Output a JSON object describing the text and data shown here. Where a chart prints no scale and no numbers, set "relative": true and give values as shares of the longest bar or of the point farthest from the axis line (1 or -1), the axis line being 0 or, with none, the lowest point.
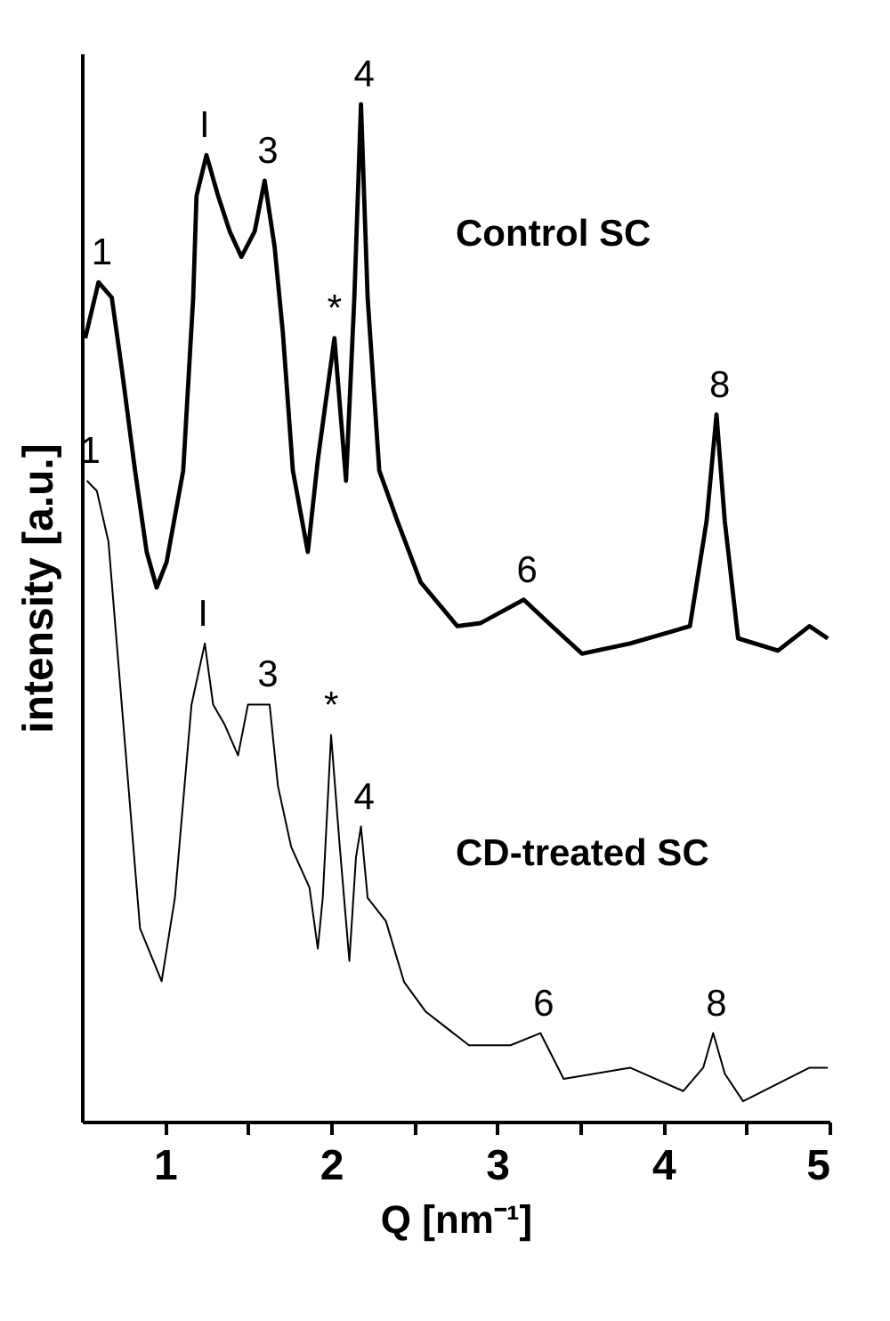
{
  "chart_data": {
    "type": "line",
    "xlabel": "Q [nm⁻¹]",
    "ylabel": "intensity [a.u.]",
    "relative": true,
    "grid": false,
    "legend": false,
    "xlim": [
      0.5,
      5
    ],
    "xticks": [
      {
        "value": 1,
        "label": "1"
      },
      {
        "value": 1.5,
        "label": null
      },
      {
        "value": 2,
        "label": "2"
      },
      {
        "value": 2.5,
        "label": null
      },
      {
        "value": 3,
        "label": "3"
      },
      {
        "value": 3.5,
        "label": null
      },
      {
        "value": 4,
        "label": "4"
      },
      {
        "value": 4.5,
        "label": null
      },
      {
        "value": 5,
        "label": "5"
      }
    ],
    "series": [
      {
        "name": "Control SC",
        "color": "#000000",
        "x": [
          0.52,
          0.6,
          0.68,
          0.74,
          0.82,
          0.89,
          0.95,
          1.01,
          1.11,
          1.17,
          1.19,
          1.25,
          1.32,
          1.39,
          1.46,
          1.54,
          1.6,
          1.66,
          1.71,
          1.77,
          1.86,
          1.92,
          2.02,
          2.09,
          2.14,
          2.18,
          2.22,
          2.29,
          2.4,
          2.54,
          2.76,
          2.9,
          3.16,
          3.33,
          3.51,
          3.8,
          4.16,
          4.26,
          4.32,
          4.37,
          4.45,
          4.69,
          4.88,
          4.99
        ],
        "values": [
          0.77,
          0.825,
          0.81,
          0.74,
          0.64,
          0.56,
          0.525,
          0.55,
          0.64,
          0.81,
          0.91,
          0.95,
          0.91,
          0.875,
          0.85,
          0.875,
          0.925,
          0.86,
          0.775,
          0.64,
          0.56,
          0.65,
          0.77,
          0.63,
          0.81,
          1.0,
          0.81,
          0.64,
          0.59,
          0.53,
          0.487,
          0.49,
          0.513,
          0.487,
          0.46,
          0.47,
          0.487,
          0.59,
          0.695,
          0.59,
          0.475,
          0.463,
          0.487,
          0.475
        ]
      },
      {
        "name": "CD-treated SC",
        "color": "#000000",
        "x": [
          0.53,
          0.59,
          0.66,
          0.73,
          0.76,
          0.85,
          0.98,
          1.06,
          1.16,
          1.24,
          1.29,
          1.36,
          1.44,
          1.5,
          1.63,
          1.68,
          1.76,
          1.87,
          1.92,
          1.95,
          2.0,
          2.05,
          2.11,
          2.15,
          2.18,
          2.22,
          2.33,
          2.44,
          2.57,
          2.83,
          3.08,
          3.26,
          3.4,
          3.8,
          4.12,
          4.24,
          4.3,
          4.37,
          4.48,
          4.88,
          4.99
        ],
        "values": [
          0.63,
          0.62,
          0.57,
          0.43,
          0.37,
          0.19,
          0.138,
          0.22,
          0.41,
          0.47,
          0.41,
          0.39,
          0.36,
          0.41,
          0.41,
          0.33,
          0.27,
          0.23,
          0.17,
          0.22,
          0.38,
          0.275,
          0.158,
          0.26,
          0.29,
          0.22,
          0.197,
          0.137,
          0.108,
          0.075,
          0.075,
          0.087,
          0.042,
          0.053,
          0.03,
          0.053,
          0.087,
          0.047,
          0.02,
          0.053,
          0.053
        ]
      }
    ],
    "annotations": [
      {
        "text": "1",
        "x": 0.6,
        "y": 0.825
      },
      {
        "text": "I",
        "x": 1.25,
        "y": 0.95
      },
      {
        "text": "3",
        "x": 1.6,
        "y": 0.925
      },
      {
        "text": "*",
        "x": 2.02,
        "y": 0.77
      },
      {
        "text": "4",
        "x": 2.18,
        "y": 1.0
      },
      {
        "text": "6",
        "x": 3.16,
        "y": 0.513
      },
      {
        "text": "8",
        "x": 4.32,
        "y": 0.695
      },
      {
        "text": "1",
        "x": 0.53,
        "y": 0.63
      },
      {
        "text": "I",
        "x": 1.24,
        "y": 0.47
      },
      {
        "text": "3",
        "x": 1.6,
        "y": 0.41
      },
      {
        "text": "*",
        "x": 2.0,
        "y": 0.38
      },
      {
        "text": "4",
        "x": 2.18,
        "y": 0.29
      },
      {
        "text": "6",
        "x": 3.26,
        "y": 0.087
      },
      {
        "text": "8",
        "x": 4.3,
        "y": 0.087
      }
    ]
  }
}
